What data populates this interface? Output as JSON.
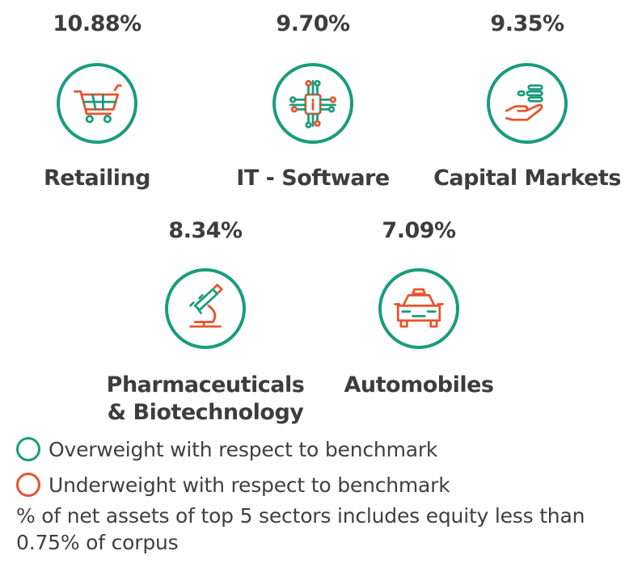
{
  "colors": {
    "overweight": "#1a9c7c",
    "underweight": "#e8532e"
  },
  "sectors": [
    {
      "percent": "10.88%",
      "name": "Retailing",
      "icon": "shopping-cart-icon",
      "weight": "overweight"
    },
    {
      "percent": "9.70%",
      "name": "IT - Software",
      "icon": "circuit-chip-icon",
      "weight": "overweight"
    },
    {
      "percent": "9.35%",
      "name": "Capital Markets",
      "icon": "hand-coins-icon",
      "weight": "overweight"
    },
    {
      "percent": "8.34%",
      "name_line1": "Pharmaceuticals",
      "name_line2": "& Biotechnology",
      "icon": "microscope-icon",
      "weight": "overweight"
    },
    {
      "percent": "7.09%",
      "name": "Automobiles",
      "icon": "car-icon",
      "weight": "overweight"
    }
  ],
  "legend": {
    "overweight": "Overweight with respect to benchmark",
    "underweight": "Underweight with respect to benchmark"
  },
  "footnote": "% of net assets of top 5 sectors includes equity less than 0.75% of corpus"
}
